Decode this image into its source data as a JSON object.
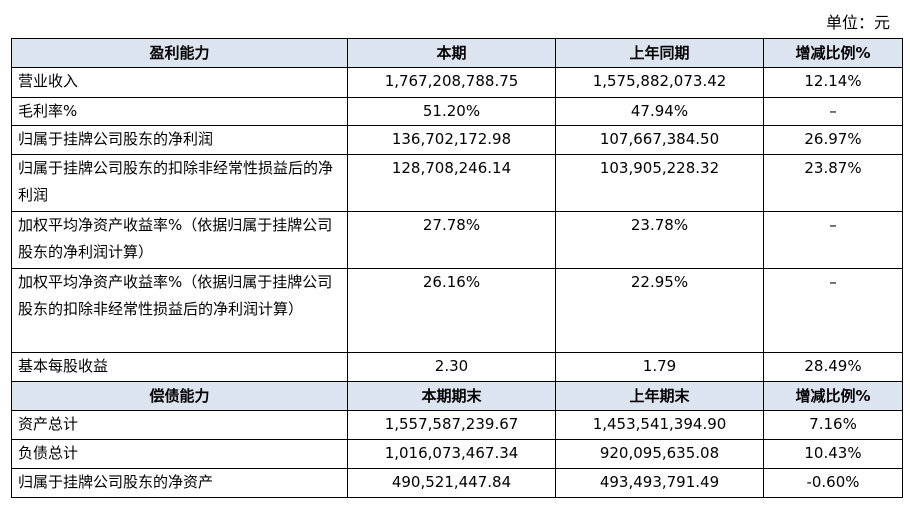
{
  "unit_label": "单位：元",
  "profitability": {
    "header": [
      "盈利能力",
      "本期",
      "上年同期",
      "增减比例%"
    ],
    "rows": [
      [
        "营业收入",
        "1,767,208,788.75",
        "1,575,882,073.42",
        "12.14%"
      ],
      [
        "毛利率%",
        "51.20%",
        "47.94%",
        "–"
      ],
      [
        "归属于挂牌公司股东的净利润",
        "136,702,172.98",
        "107,667,384.50",
        "26.97%"
      ],
      [
        "归属于挂牌公司股东的扣除非经常性损益后的净利润",
        "128,708,246.14",
        "103,905,228.32",
        "23.87%"
      ],
      [
        "加权平均净资产收益率%（依据归属于挂牌公司股东的净利润计算）",
        "27.78%",
        "23.78%",
        "–"
      ],
      [
        "加权平均净资产收益率%（依据归属于挂牌公司股东的扣除非经常性损益后的净利润计算）",
        "26.16%",
        "22.95%",
        "–"
      ],
      [
        "基本每股收益",
        "2.30",
        "1.79",
        "28.49%"
      ]
    ]
  },
  "solvency": {
    "header": [
      "偿债能力",
      "本期期末",
      "上年期末",
      "增减比例%"
    ],
    "rows": [
      [
        "资产总计",
        "1,557,587,239.67",
        "1,453,541,394.90",
        "7.16%"
      ],
      [
        "负债总计",
        "1,016,073,467.34",
        "920,095,635.08",
        "10.43%"
      ],
      [
        "归属于挂牌公司股东的净资产",
        "490,521,447.84",
        "493,493,791.49",
        "-0.60%"
      ]
    ]
  }
}
